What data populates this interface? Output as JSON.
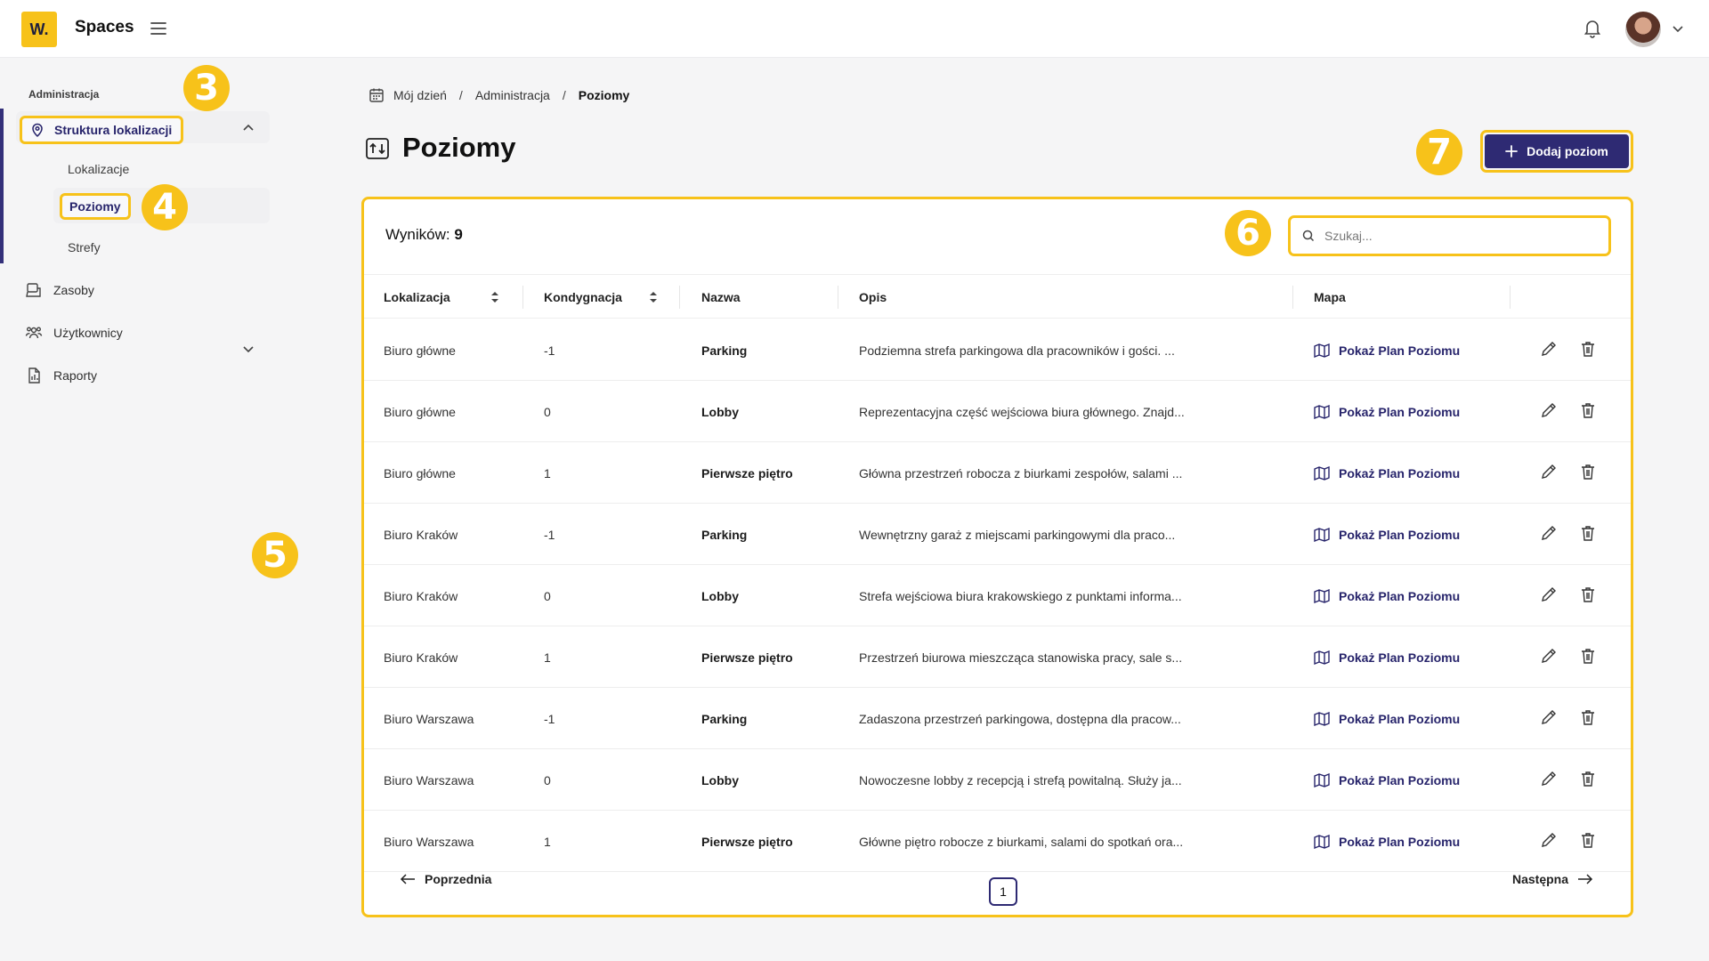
{
  "app": {
    "logo_text": "W.",
    "title": "Spaces"
  },
  "sidebar": {
    "section_label": "Administracja",
    "parent_label": "Struktura lokalizacji",
    "sub_items": [
      "Lokalizacje",
      "Poziomy",
      "Strefy"
    ],
    "items": [
      "Zasoby",
      "Użytkownicy",
      "Raporty"
    ]
  },
  "badges": [
    "3",
    "4",
    "5",
    "6",
    "7"
  ],
  "breadcrumb": [
    "Mój dzień",
    "Administracja",
    "Poziomy"
  ],
  "page": {
    "title": "Poziomy",
    "add_label": "Dodaj poziom"
  },
  "table": {
    "results_label": "Wyników:",
    "results_count": "9",
    "search_placeholder": "Szukaj...",
    "columns": [
      "Lokalizacja",
      "Kondygnacja",
      "Nazwa",
      "Opis",
      "Mapa"
    ],
    "rows": [
      [
        "Biuro główne",
        "-1",
        "Parking",
        "Podziemna strefa parkingowa dla pracowników i gości. ...",
        "Pokaż Plan Poziomu"
      ],
      [
        "Biuro główne",
        "0",
        "Lobby",
        "Reprezentacyjna część wejściowa biura głównego. Znajd...",
        "Pokaż Plan Poziomu"
      ],
      [
        "Biuro główne",
        "1",
        "Pierwsze piętro",
        "Główna przestrzeń robocza z biurkami zespołów, salami ...",
        "Pokaż Plan Poziomu"
      ],
      [
        "Biuro Kraków",
        "-1",
        "Parking",
        "Wewnętrzny garaż z miejscami parkingowymi dla praco...",
        "Pokaż Plan Poziomu"
      ],
      [
        "Biuro Kraków",
        "0",
        "Lobby",
        "Strefa wejściowa biura krakowskiego z punktami informa...",
        "Pokaż Plan Poziomu"
      ],
      [
        "Biuro Kraków",
        "1",
        "Pierwsze piętro",
        "Przestrzeń biurowa mieszcząca stanowiska pracy, sale s...",
        "Pokaż Plan Poziomu"
      ],
      [
        "Biuro Warszawa",
        "-1",
        "Parking",
        "Zadaszona przestrzeń parkingowa, dostępna dla pracow...",
        "Pokaż Plan Poziomu"
      ],
      [
        "Biuro Warszawa",
        "0",
        "Lobby",
        "Nowoczesne lobby z recepcją i strefą powitalną. Służy ja...",
        "Pokaż Plan Poziomu"
      ],
      [
        "Biuro Warszawa",
        "1",
        "Pierwsze piętro",
        "Główne piętro robocze z biurkami, salami do spotkań ora...",
        "Pokaż Plan Poziomu"
      ]
    ]
  },
  "pager": {
    "prev": "Poprzednia",
    "page": "1",
    "next": "Następna"
  },
  "colors": {
    "accent": "#f7c21a",
    "primary": "#2e2a73"
  }
}
